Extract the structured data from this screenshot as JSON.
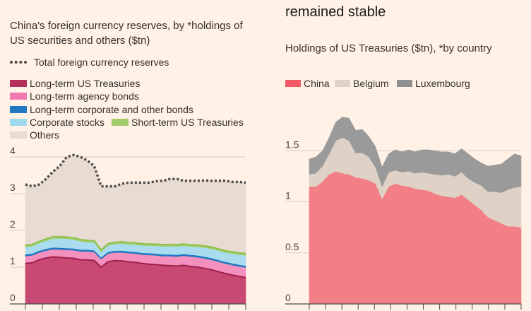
{
  "heading_right": "remained stable",
  "chart_data": [
    {
      "type": "area",
      "title": "China's foreign currency reserves, by *holdings of US securities and others ($tn)",
      "ylim": [
        0,
        4
      ],
      "yticks": [
        0,
        1,
        2,
        3,
        4
      ],
      "stacked": true,
      "legend": [
        {
          "name": "Total foreign currency reserves",
          "style": "dotted",
          "color": "#4a4a4a"
        },
        {
          "name": "Long-term US Treasuries",
          "color": "#b4305a"
        },
        {
          "name": "Long-term agency bonds",
          "color": "#f07ab0"
        },
        {
          "name": "Long-term corporate and other bonds",
          "color": "#1f78c1"
        },
        {
          "name": "Corporate stocks",
          "color": "#9fd9ee"
        },
        {
          "name": "Short-term US Treasuries",
          "color": "#a3cd6a"
        },
        {
          "name": "Others",
          "color": "#e8dcd2"
        }
      ],
      "x": [
        0,
        1,
        2,
        3,
        4,
        5,
        6,
        7,
        8,
        9,
        10,
        11,
        12,
        13,
        14,
        15,
        16,
        17,
        18,
        19,
        20,
        21,
        22,
        23,
        24,
        25,
        26,
        27,
        28,
        29,
        30,
        31,
        32
      ],
      "series": [
        {
          "name": "Long-term US Treasuries",
          "color": "#c84a74",
          "values": [
            1.1,
            1.12,
            1.2,
            1.25,
            1.28,
            1.27,
            1.25,
            1.24,
            1.2,
            1.2,
            1.18,
            1.0,
            1.15,
            1.18,
            1.17,
            1.15,
            1.13,
            1.1,
            1.08,
            1.07,
            1.05,
            1.04,
            1.03,
            1.05,
            1.02,
            1.0,
            0.97,
            0.93,
            0.88,
            0.83,
            0.79,
            0.75,
            0.72
          ]
        },
        {
          "name": "Long-term agency bonds",
          "color": "#f490bd",
          "values": [
            0.2,
            0.2,
            0.2,
            0.2,
            0.21,
            0.21,
            0.22,
            0.22,
            0.23,
            0.23,
            0.23,
            0.22,
            0.22,
            0.22,
            0.23,
            0.23,
            0.24,
            0.24,
            0.25,
            0.25,
            0.25,
            0.26,
            0.26,
            0.26,
            0.27,
            0.27,
            0.27,
            0.27,
            0.27,
            0.27,
            0.27,
            0.27,
            0.27
          ]
        },
        {
          "name": "Long-term corporate and other bonds",
          "color": "#1f78c1",
          "values": [
            0.05,
            0.05,
            0.05,
            0.05,
            0.05,
            0.05,
            0.05,
            0.05,
            0.05,
            0.05,
            0.05,
            0.05,
            0.05,
            0.05,
            0.05,
            0.05,
            0.05,
            0.05,
            0.05,
            0.05,
            0.05,
            0.05,
            0.05,
            0.05,
            0.05,
            0.05,
            0.05,
            0.05,
            0.05,
            0.05,
            0.05,
            0.05,
            0.05
          ]
        },
        {
          "name": "Corporate stocks",
          "color": "#a9dcef",
          "values": [
            0.2,
            0.2,
            0.2,
            0.22,
            0.24,
            0.25,
            0.25,
            0.24,
            0.22,
            0.2,
            0.21,
            0.15,
            0.17,
            0.18,
            0.19,
            0.19,
            0.19,
            0.2,
            0.2,
            0.21,
            0.21,
            0.22,
            0.22,
            0.22,
            0.22,
            0.23,
            0.24,
            0.25,
            0.25,
            0.25,
            0.26,
            0.27,
            0.28
          ]
        },
        {
          "name": "Short-term US Treasuries",
          "color": "#a3cd6a",
          "values": [
            0.05,
            0.05,
            0.05,
            0.05,
            0.05,
            0.05,
            0.05,
            0.05,
            0.05,
            0.05,
            0.05,
            0.05,
            0.05,
            0.05,
            0.05,
            0.05,
            0.05,
            0.05,
            0.05,
            0.05,
            0.05,
            0.05,
            0.05,
            0.05,
            0.05,
            0.05,
            0.05,
            0.05,
            0.05,
            0.05,
            0.05,
            0.05,
            0.05
          ]
        },
        {
          "name": "Others",
          "color": "#e8dcd2",
          "values": [
            1.65,
            1.58,
            1.55,
            1.63,
            1.77,
            1.92,
            2.18,
            2.25,
            2.25,
            2.17,
            2.03,
            1.73,
            1.56,
            1.52,
            1.58,
            1.63,
            1.64,
            1.66,
            1.67,
            1.71,
            1.74,
            1.78,
            1.79,
            1.72,
            1.74,
            1.75,
            1.78,
            1.8,
            1.85,
            1.9,
            1.9,
            1.93,
            1.93
          ]
        }
      ],
      "total": [
        3.25,
        3.2,
        3.25,
        3.4,
        3.6,
        3.75,
        4.0,
        4.05,
        4.0,
        3.9,
        3.75,
        3.2,
        3.2,
        3.2,
        3.27,
        3.3,
        3.3,
        3.3,
        3.3,
        3.34,
        3.35,
        3.4,
        3.4,
        3.35,
        3.35,
        3.35,
        3.36,
        3.35,
        3.35,
        3.35,
        3.32,
        3.32,
        3.3
      ]
    },
    {
      "type": "area",
      "title": "Holdings of US Treasuries ($tn), *by country",
      "ylim": [
        0,
        1.8
      ],
      "yticks": [
        0,
        0.5,
        1,
        1.5
      ],
      "ytick_labels": [
        "0",
        "0.5",
        "1",
        "1.5"
      ],
      "stacked": true,
      "x": [
        0,
        1,
        2,
        3,
        4,
        5,
        6,
        7,
        8,
        9,
        10,
        11,
        12,
        13,
        14,
        15,
        16,
        17,
        18,
        19,
        20,
        21,
        22,
        23,
        24,
        25,
        26,
        27,
        28,
        29,
        30,
        31,
        32
      ],
      "series": [
        {
          "name": "China",
          "color": "#f27e86",
          "values": [
            1.15,
            1.15,
            1.2,
            1.27,
            1.3,
            1.28,
            1.27,
            1.24,
            1.23,
            1.21,
            1.18,
            1.03,
            1.15,
            1.18,
            1.16,
            1.15,
            1.13,
            1.12,
            1.11,
            1.08,
            1.06,
            1.05,
            1.04,
            1.07,
            1.02,
            0.97,
            0.92,
            0.85,
            0.82,
            0.79,
            0.76,
            0.76,
            0.75
          ]
        },
        {
          "name": "Belgium",
          "color": "#dfd1c5",
          "values": [
            0.12,
            0.13,
            0.15,
            0.2,
            0.3,
            0.35,
            0.33,
            0.24,
            0.25,
            0.23,
            0.16,
            0.12,
            0.14,
            0.13,
            0.13,
            0.15,
            0.15,
            0.17,
            0.17,
            0.19,
            0.2,
            0.22,
            0.21,
            0.22,
            0.21,
            0.22,
            0.24,
            0.25,
            0.28,
            0.3,
            0.36,
            0.38,
            0.4
          ]
        },
        {
          "name": "Luxembourg",
          "color": "#9a9a9a",
          "values": [
            0.15,
            0.16,
            0.15,
            0.16,
            0.18,
            0.2,
            0.22,
            0.22,
            0.23,
            0.2,
            0.2,
            0.19,
            0.18,
            0.2,
            0.2,
            0.21,
            0.21,
            0.22,
            0.23,
            0.23,
            0.23,
            0.22,
            0.22,
            0.23,
            0.24,
            0.23,
            0.22,
            0.25,
            0.26,
            0.28,
            0.3,
            0.33,
            0.3
          ]
        }
      ]
    }
  ]
}
